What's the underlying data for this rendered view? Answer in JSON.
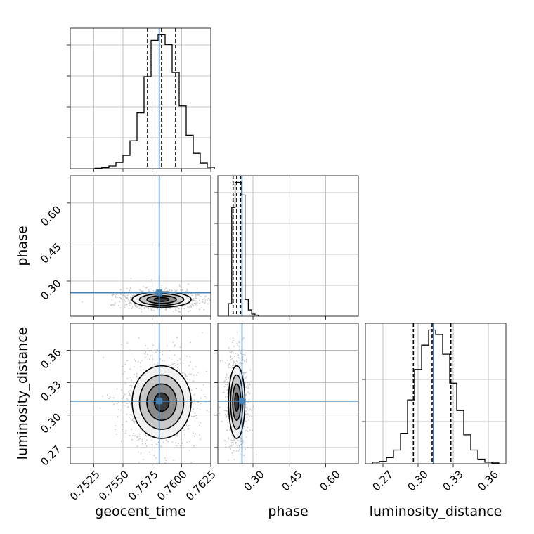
{
  "colors": {
    "truth": "#4682b4",
    "hist": "#000000",
    "grid": "#b0b0b0",
    "scatter": "#808080"
  },
  "chart_data": {
    "type": "corner",
    "parameters": [
      "geocent_time",
      "phase",
      "luminosity_distance"
    ],
    "truths": {
      "geocent_time": 0.7581,
      "phase": 0.255,
      "luminosity_distance": 0.313
    },
    "quantiles": {
      "geocent_time": [
        0.7571,
        0.7583,
        0.7595
      ],
      "phase": [
        0.218,
        0.233,
        0.249
      ],
      "luminosity_distance": [
        0.296,
        0.312,
        0.328
      ]
    },
    "grid": true,
    "histograms": [
      {
        "param": "geocent_time",
        "xlim": [
          0.7505,
          0.7625
        ],
        "bin_width": 0.0006,
        "counts": [
          0.3,
          0.8,
          2.0,
          4.5,
          9.5,
          20.0,
          40.0,
          66.0,
          92.0,
          96.0,
          89.0,
          69.0,
          45.0,
          24.0,
          11.0,
          4.0,
          1.0
        ]
      },
      {
        "param": "phase",
        "xlim": [
          0.155,
          0.735
        ],
        "bin_width": 0.0137,
        "counts": [
          6,
          52,
          64,
          64,
          58,
          8,
          3,
          1,
          0.5
        ]
      },
      {
        "param": "luminosity_distance",
        "xlim": [
          0.255,
          0.375
        ],
        "bin_width": 0.006,
        "counts": [
          1,
          1.5,
          4,
          9,
          20,
          42,
          62,
          78,
          88,
          85,
          72,
          53,
          35,
          19,
          9,
          3,
          1,
          0.5
        ]
      }
    ],
    "panels_2d": [
      {
        "x": "geocent_time",
        "y": "phase",
        "xlim": [
          0.7505,
          0.7625
        ],
        "ylim": [
          0.165,
          0.705
        ],
        "mean": [
          0.7583,
          0.229
        ],
        "sd": [
          0.0012,
          0.014
        ],
        "contour_levels": [
          0.5,
          1.0,
          1.5,
          2.0
        ]
      },
      {
        "x": "geocent_time",
        "y": "luminosity_distance",
        "xlim": [
          0.7505,
          0.7625
        ],
        "ylim": [
          0.255,
          0.385
        ],
        "mean": [
          0.7583,
          0.312
        ],
        "sd": [
          0.0012,
          0.016
        ],
        "contour_levels": [
          0.5,
          1.0,
          1.5,
          2.0
        ]
      },
      {
        "x": "phase",
        "y": "luminosity_distance",
        "xlim": [
          0.155,
          0.735
        ],
        "ylim": [
          0.255,
          0.385
        ],
        "mean": [
          0.233,
          0.312
        ],
        "sd": [
          0.016,
          0.016
        ],
        "contour_levels": [
          0.5,
          1.0,
          1.5,
          2.0
        ]
      }
    ],
    "ticks": {
      "geocent_time": [
        "0.7525",
        "0.7550",
        "0.7575",
        "0.7600",
        "0.7625"
      ],
      "phase": [
        "0.30",
        "0.45",
        "0.60"
      ],
      "luminosity_distance": [
        "0.27",
        "0.30",
        "0.33",
        "0.36"
      ]
    },
    "axis_labels": {
      "x": [
        "geocent_time",
        "phase",
        "luminosity_distance"
      ],
      "y": [
        "phase",
        "luminosity_distance"
      ]
    }
  }
}
